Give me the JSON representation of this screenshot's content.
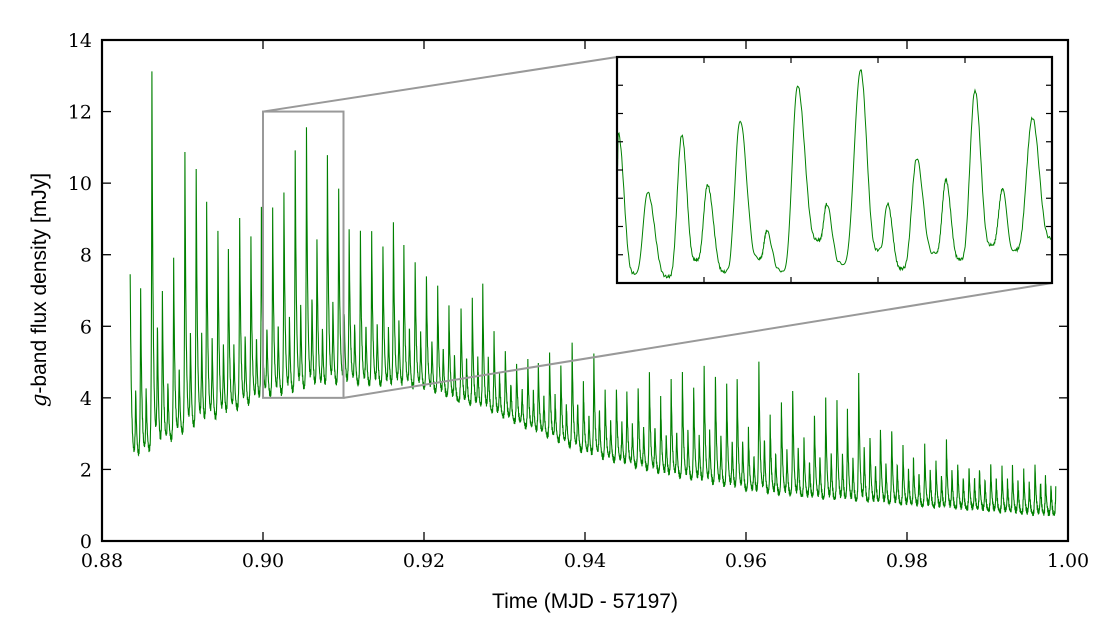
{
  "chart_data": {
    "type": "line",
    "xlabel": "Time (MJD - 57197)",
    "ylabel_prefix": "g",
    "ylabel": "-band flux density [mJy]",
    "xlim": [
      0.88,
      1.0
    ],
    "ylim": [
      0,
      14
    ],
    "xticks": [
      0.88,
      0.9,
      0.92,
      0.94,
      0.96,
      0.98,
      1.0
    ],
    "xtick_labels": [
      "0.88",
      "0.90",
      "0.92",
      "0.94",
      "0.96",
      "0.98",
      "1.00"
    ],
    "yticks": [
      0,
      2,
      4,
      6,
      8,
      10,
      12,
      14
    ],
    "ytick_labels": [
      "0",
      "2",
      "4",
      "6",
      "8",
      "10",
      "12",
      "14"
    ],
    "grid": false,
    "series_color": "#008000",
    "zoom_color": "#999999",
    "time_range": [
      0.8835,
      0.9985
    ],
    "major_peaks": [
      [
        0.8835,
        7.48
      ],
      [
        0.8848,
        7.06
      ],
      [
        0.8862,
        13.1
      ],
      [
        0.8875,
        6.96
      ],
      [
        0.8889,
        7.88
      ],
      [
        0.8903,
        10.83
      ],
      [
        0.8917,
        10.44
      ],
      [
        0.893,
        9.45
      ],
      [
        0.8944,
        8.71
      ],
      [
        0.8957,
        8.15
      ],
      [
        0.8971,
        9.04
      ],
      [
        0.8985,
        8.44
      ],
      [
        0.8998,
        9.31
      ],
      [
        0.9012,
        9.25
      ],
      [
        0.9026,
        9.74
      ],
      [
        0.904,
        10.99
      ],
      [
        0.9054,
        11.53
      ],
      [
        0.9067,
        8.44
      ],
      [
        0.908,
        10.81
      ],
      [
        0.9094,
        9.82
      ],
      [
        0.9107,
        8.71
      ],
      [
        0.9121,
        8.61
      ],
      [
        0.9135,
        8.6
      ],
      [
        0.9149,
        8.29
      ],
      [
        0.9162,
        8.89
      ],
      [
        0.9175,
        8.22
      ],
      [
        0.9189,
        7.82
      ],
      [
        0.9203,
        7.43
      ],
      [
        0.9217,
        7.06
      ],
      [
        0.9231,
        6.51
      ],
      [
        0.9246,
        6.5
      ],
      [
        0.926,
        6.73
      ],
      [
        0.9273,
        7.12
      ],
      [
        0.9287,
        5.8
      ],
      [
        0.9301,
        5.33
      ],
      [
        0.9315,
        4.96
      ],
      [
        0.9329,
        5.06
      ],
      [
        0.9342,
        4.96
      ],
      [
        0.9356,
        5.24
      ],
      [
        0.937,
        4.92
      ],
      [
        0.9384,
        5.52
      ],
      [
        0.9398,
        4.4
      ],
      [
        0.9411,
        5.2
      ],
      [
        0.9425,
        4.2
      ],
      [
        0.9439,
        4.29
      ],
      [
        0.9452,
        4.17
      ],
      [
        0.9466,
        4.31
      ],
      [
        0.948,
        4.68
      ],
      [
        0.9494,
        3.96
      ],
      [
        0.9507,
        4.45
      ],
      [
        0.9521,
        4.68
      ],
      [
        0.9535,
        4.36
      ],
      [
        0.9548,
        4.9
      ],
      [
        0.9562,
        4.66
      ],
      [
        0.9576,
        4.36
      ],
      [
        0.9589,
        4.54
      ],
      [
        0.9603,
        3.1
      ],
      [
        0.9616,
        4.98
      ],
      [
        0.963,
        3.44
      ],
      [
        0.9644,
        3.89
      ],
      [
        0.9658,
        4.28
      ],
      [
        0.9672,
        2.87
      ],
      [
        0.9685,
        3.54
      ],
      [
        0.9699,
        3.92
      ],
      [
        0.9713,
        3.87
      ],
      [
        0.9726,
        3.58
      ],
      [
        0.974,
        4.7
      ],
      [
        0.9754,
        2.96
      ],
      [
        0.9767,
        3.17
      ],
      [
        0.9781,
        3.12
      ],
      [
        0.9795,
        2.61
      ],
      [
        0.9808,
        2.31
      ],
      [
        0.9822,
        2.62
      ],
      [
        0.9836,
        2.24
      ],
      [
        0.9849,
        2.76
      ],
      [
        0.9863,
        2.19
      ],
      [
        0.9877,
        2.08
      ],
      [
        0.989,
        2.06
      ],
      [
        0.9904,
        2.14
      ],
      [
        0.9918,
        2.03
      ],
      [
        0.9931,
        2.05
      ],
      [
        0.9945,
        1.96
      ],
      [
        0.9959,
        2.17
      ],
      [
        0.9972,
        1.82
      ],
      [
        0.9985,
        1.78
      ]
    ],
    "baseline": [
      [
        0.8835,
        2.1
      ],
      [
        0.89,
        2.9
      ],
      [
        0.9,
        3.9
      ],
      [
        0.91,
        4.3
      ],
      [
        0.92,
        4.2
      ],
      [
        0.93,
        3.4
      ],
      [
        0.94,
        2.4
      ],
      [
        0.95,
        1.8
      ],
      [
        0.96,
        1.35
      ],
      [
        0.97,
        1.1
      ],
      [
        0.98,
        0.95
      ],
      [
        0.99,
        0.8
      ],
      [
        0.9985,
        0.65
      ]
    ],
    "zoom_box": {
      "xlim": [
        0.9,
        0.91
      ],
      "ylim": [
        4,
        12
      ]
    },
    "inset": {
      "xlim": [
        0.9,
        0.91
      ],
      "ylim": [
        4,
        12
      ],
      "xticks": [
        0.902,
        0.904,
        0.906,
        0.908
      ],
      "yticks": [
        5,
        6,
        7,
        8,
        9,
        10,
        11
      ],
      "extrema": [
        [
          0.9,
          7.8
        ],
        [
          0.90003,
          9.3
        ],
        [
          0.90041,
          4.34
        ],
        [
          0.9007,
          7.23
        ],
        [
          0.90118,
          4.22
        ],
        [
          0.90149,
          9.24
        ],
        [
          0.90182,
          4.81
        ],
        [
          0.90208,
          7.47
        ],
        [
          0.90248,
          4.4
        ],
        [
          0.90283,
          9.77
        ],
        [
          0.90327,
          4.87
        ],
        [
          0.90344,
          5.84
        ],
        [
          0.90379,
          4.44
        ],
        [
          0.90415,
          11.0
        ],
        [
          0.90463,
          5.52
        ],
        [
          0.90482,
          6.8
        ],
        [
          0.90517,
          4.7
        ],
        [
          0.9056,
          11.54
        ],
        [
          0.90601,
          5.17
        ],
        [
          0.90622,
          6.82
        ],
        [
          0.90655,
          4.52
        ],
        [
          0.90689,
          8.41
        ],
        [
          0.90731,
          5.05
        ],
        [
          0.90756,
          7.65
        ],
        [
          0.90789,
          4.84
        ],
        [
          0.90823,
          10.83
        ],
        [
          0.90861,
          5.34
        ],
        [
          0.90886,
          7.32
        ],
        [
          0.90915,
          5.17
        ],
        [
          0.90955,
          9.85
        ],
        [
          0.91,
          5.58
        ]
      ]
    }
  }
}
